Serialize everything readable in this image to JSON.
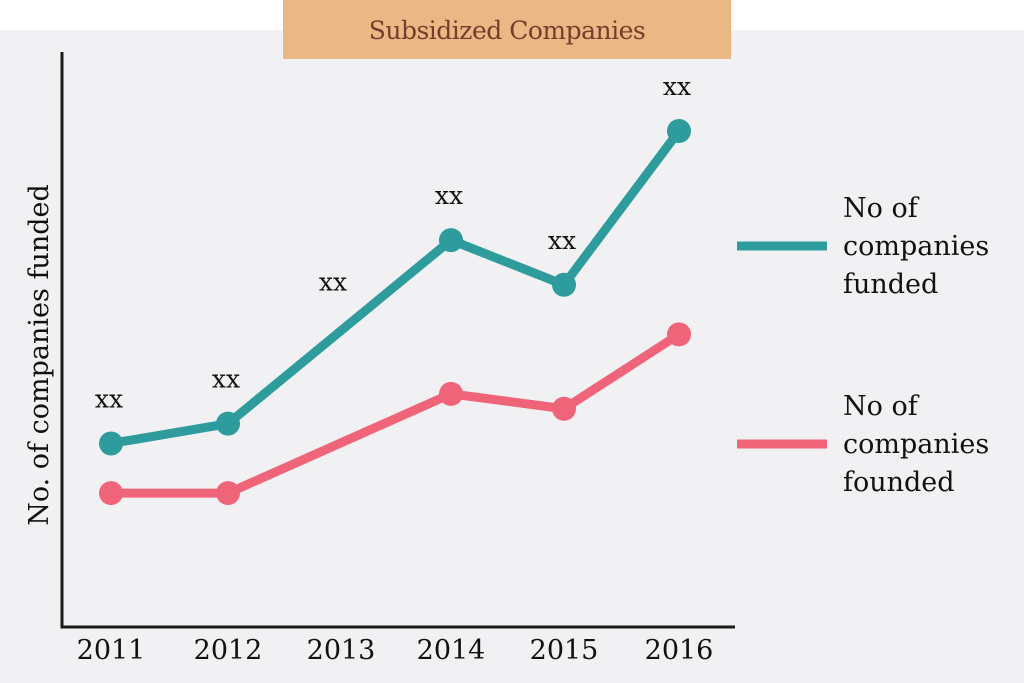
{
  "colors": {
    "panel_bg": "#f1f1f4",
    "title_bg": "#e9b884",
    "title_text": "#7a3b2c",
    "axis": "#1a1a1a",
    "text": "#111111"
  },
  "chart_data": {
    "type": "line",
    "title": "Subsidized Companies",
    "xlabel": "",
    "ylabel": "No. of companies funded",
    "categories": [
      "2011",
      "2012",
      "2013",
      "2014",
      "2015",
      "2016"
    ],
    "ylim": [
      0,
      100
    ],
    "grid": false,
    "legend_position": "right",
    "series": [
      {
        "name": "No of companies funded",
        "color": "#2e9c9c",
        "values": [
          37,
          41,
          null,
          78,
          69,
          100
        ],
        "labels": [
          "xx",
          "xx",
          "xx",
          "xx",
          "xx",
          "xx"
        ]
      },
      {
        "name": "No of companies founded",
        "color": "#ef6478",
        "values": [
          27,
          27,
          null,
          47,
          44,
          59
        ]
      }
    ]
  }
}
